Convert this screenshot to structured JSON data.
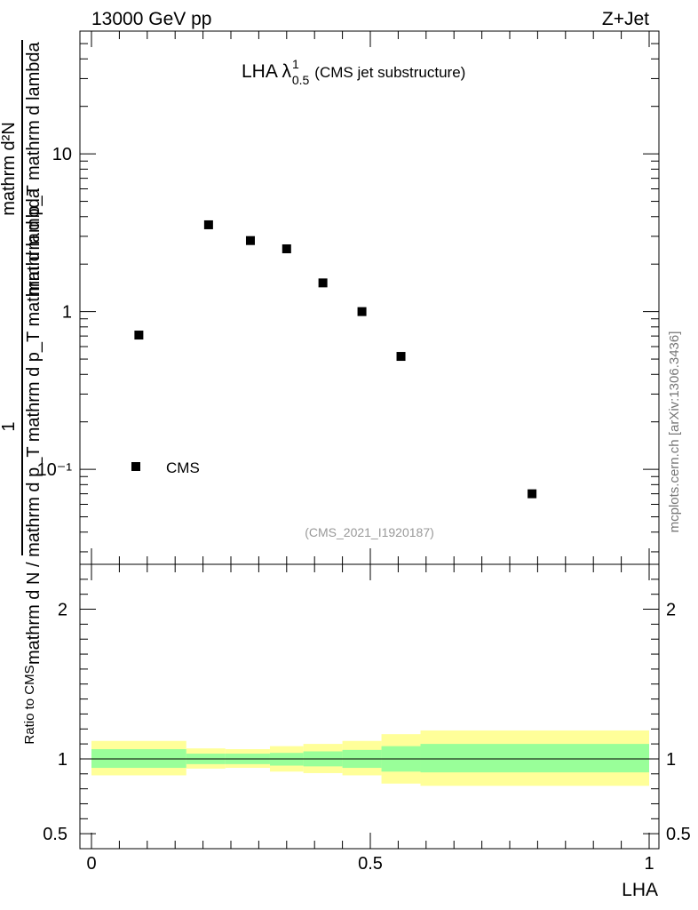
{
  "header": {
    "left": "13000 GeV pp",
    "right": "Z+Jet"
  },
  "plot_title": {
    "main": "LHA λ",
    "sup": "1",
    "sub": "0.5",
    "suffix": "(CMS jet substructure)"
  },
  "watermark": "(CMS_2021_I1920187)",
  "side_text": "mcplots.cern.ch [arXiv:1306.3436]",
  "ylabel_top": {
    "numerator": "1",
    "denominator_parts": [
      "mathrm d N",
      " / mathrm d p",
      "T",
      "mathrm d p",
      "T",
      " mathrm d lambda"
    ],
    "denominator_text": "mathrm d N / mathrm d p_T mathrm d p_T mathrm d lambda",
    "numerator_right": "mathrm d²N",
    "denominator_right": "mathrm d p_T mathrm d lambda"
  },
  "ylabel_ratio": "Ratio to CMS",
  "xlabel": "LHA",
  "legend": {
    "label": "CMS"
  },
  "colors": {
    "data": "#000000",
    "band_inner": "#99ff99",
    "band_outer": "#ffff99",
    "watermark": "#999999",
    "side_text": "#777777"
  },
  "chart_data": [
    {
      "type": "scatter",
      "name": "main",
      "yscale": "log",
      "xlim": [
        0,
        1
      ],
      "ylim": [
        0.025,
        60
      ],
      "yticks": [
        0.1,
        1,
        10
      ],
      "ytick_labels": [
        "10⁻¹",
        "1",
        "10"
      ],
      "series": [
        {
          "name": "CMS",
          "x": [
            0.085,
            0.21,
            0.285,
            0.35,
            0.415,
            0.485,
            0.555,
            0.79
          ],
          "y": [
            0.71,
            3.55,
            2.82,
            2.5,
            1.52,
            1.0,
            0.52,
            0.07
          ]
        }
      ]
    },
    {
      "type": "area",
      "name": "ratio",
      "xlim": [
        0,
        1
      ],
      "ylim": [
        0.4,
        2.3
      ],
      "yticks": [
        0.5,
        1,
        2
      ],
      "ytick_labels": [
        "0.5",
        "1",
        "2"
      ],
      "xticks": [
        0,
        0.5,
        1
      ],
      "xtick_labels": [
        "0",
        "0.5",
        "1"
      ],
      "reference_line": 1,
      "bins": [
        {
          "x0": 0.0,
          "x1": 0.17,
          "inner": [
            0.94,
            1.065
          ],
          "outer": [
            0.89,
            1.12
          ]
        },
        {
          "x0": 0.17,
          "x1": 0.24,
          "inner": [
            0.965,
            1.035
          ],
          "outer": [
            0.935,
            1.07
          ]
        },
        {
          "x0": 0.24,
          "x1": 0.32,
          "inner": [
            0.965,
            1.035
          ],
          "outer": [
            0.94,
            1.065
          ]
        },
        {
          "x0": 0.32,
          "x1": 0.38,
          "inner": [
            0.955,
            1.04
          ],
          "outer": [
            0.915,
            1.085
          ]
        },
        {
          "x0": 0.38,
          "x1": 0.45,
          "inner": [
            0.95,
            1.05
          ],
          "outer": [
            0.905,
            1.1
          ]
        },
        {
          "x0": 0.45,
          "x1": 0.52,
          "inner": [
            0.94,
            1.06
          ],
          "outer": [
            0.89,
            1.12
          ]
        },
        {
          "x0": 0.52,
          "x1": 0.59,
          "inner": [
            0.915,
            1.085
          ],
          "outer": [
            0.835,
            1.165
          ]
        },
        {
          "x0": 0.59,
          "x1": 1.0,
          "inner": [
            0.91,
            1.1
          ],
          "outer": [
            0.82,
            1.19
          ]
        }
      ]
    }
  ]
}
